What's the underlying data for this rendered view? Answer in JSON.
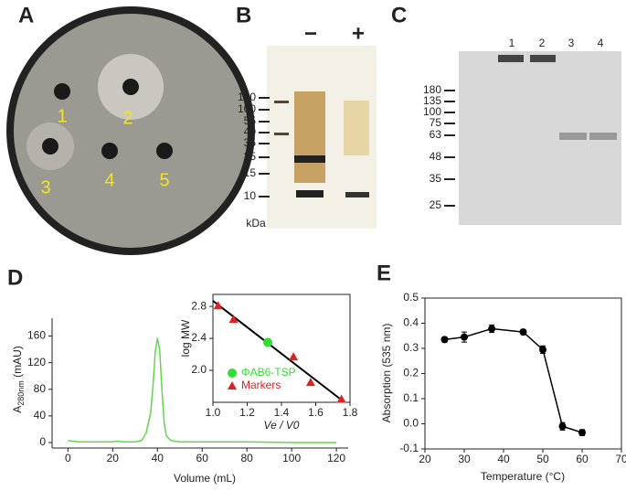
{
  "panel_labels": [
    "A",
    "B",
    "C",
    "D",
    "E"
  ],
  "plate": {
    "wells": [
      "1",
      "2",
      "3",
      "4",
      "5"
    ]
  },
  "gel_b": {
    "lanes": [
      "−",
      "+"
    ],
    "markers": [
      130,
      100,
      55,
      40,
      35,
      25,
      15,
      10
    ],
    "unit": "kDa"
  },
  "gel_c": {
    "lanes": [
      "1",
      "2",
      "3",
      "4"
    ],
    "markers": [
      180,
      135,
      100,
      75,
      63,
      48,
      35,
      25
    ]
  },
  "chart_data": [
    {
      "type": "line",
      "x_label": "Volume (mL)",
      "y_label": "A",
      "y_label_sub": "280nm",
      "y_label_unit": " (mAU)",
      "xlim": [
        -3,
        122
      ],
      "xticks": [
        0,
        20,
        40,
        60,
        80,
        100,
        120
      ],
      "ylim": [
        0,
        180
      ],
      "yticks": [
        0,
        40,
        80,
        120,
        160
      ],
      "series": [
        {
          "color": "#5fd84a",
          "x": [
            0,
            2,
            5,
            10,
            15,
            20,
            22,
            25,
            30,
            33,
            35,
            36,
            37,
            38,
            39,
            40,
            41,
            42,
            43,
            44,
            46,
            50,
            60,
            80,
            100,
            120
          ],
          "values": [
            3,
            2,
            1,
            1,
            1,
            1,
            2,
            1,
            1,
            3,
            15,
            30,
            45,
            85,
            135,
            157,
            140,
            80,
            30,
            10,
            3,
            1,
            1,
            1,
            0,
            0
          ]
        }
      ]
    },
    {
      "type": "scatter",
      "x_label": "Ve / V0",
      "y_label": "log MW",
      "xlim": [
        1.0,
        1.8
      ],
      "xticks": [
        {
          "value": 1,
          "label": "1.0"
        },
        1.2,
        1.4,
        1.6,
        {
          "value": 1.8,
          "label": "1.8"
        }
      ],
      "ylim": [
        1.6,
        2.95
      ],
      "yticks": [
        {
          "value": 2,
          "label": "2.0"
        },
        2.4,
        2.8
      ],
      "fit": {
        "color": "#000000",
        "x": [
          1.0,
          1.75
        ],
        "y": [
          2.87,
          1.63
        ]
      },
      "series": [
        {
          "name": "ΦAB6-TSP",
          "color": "#33dd33",
          "marker": "circle",
          "x": [
            1.32
          ],
          "values": [
            2.35
          ]
        },
        {
          "name": "Markers",
          "color": "#dd2222",
          "marker": "triangle",
          "x": [
            1.03,
            1.12,
            1.47,
            1.57,
            1.75
          ],
          "values": [
            2.81,
            2.64,
            2.17,
            1.85,
            1.64
          ]
        }
      ]
    },
    {
      "type": "line",
      "x_label": "Temperature (°C)",
      "y_label": "Absorption (535 nm)",
      "xlim": [
        20,
        70
      ],
      "xticks": [
        20,
        30,
        40,
        50,
        60,
        70
      ],
      "ylim": [
        -0.1,
        0.5
      ],
      "yticks": [
        -0.1,
        {
          "value": 0,
          "label": "0.0"
        },
        0.1,
        0.2,
        0.3,
        0.4,
        0.5
      ],
      "series": [
        {
          "color": "#000000",
          "x": [
            25,
            30,
            37,
            45,
            50,
            55,
            60
          ],
          "values": [
            0.335,
            0.345,
            0.378,
            0.365,
            0.295,
            -0.01,
            -0.035
          ],
          "errors": [
            0.01,
            0.02,
            0.015,
            0.01,
            0.015,
            0.015,
            0.012
          ]
        }
      ]
    }
  ]
}
